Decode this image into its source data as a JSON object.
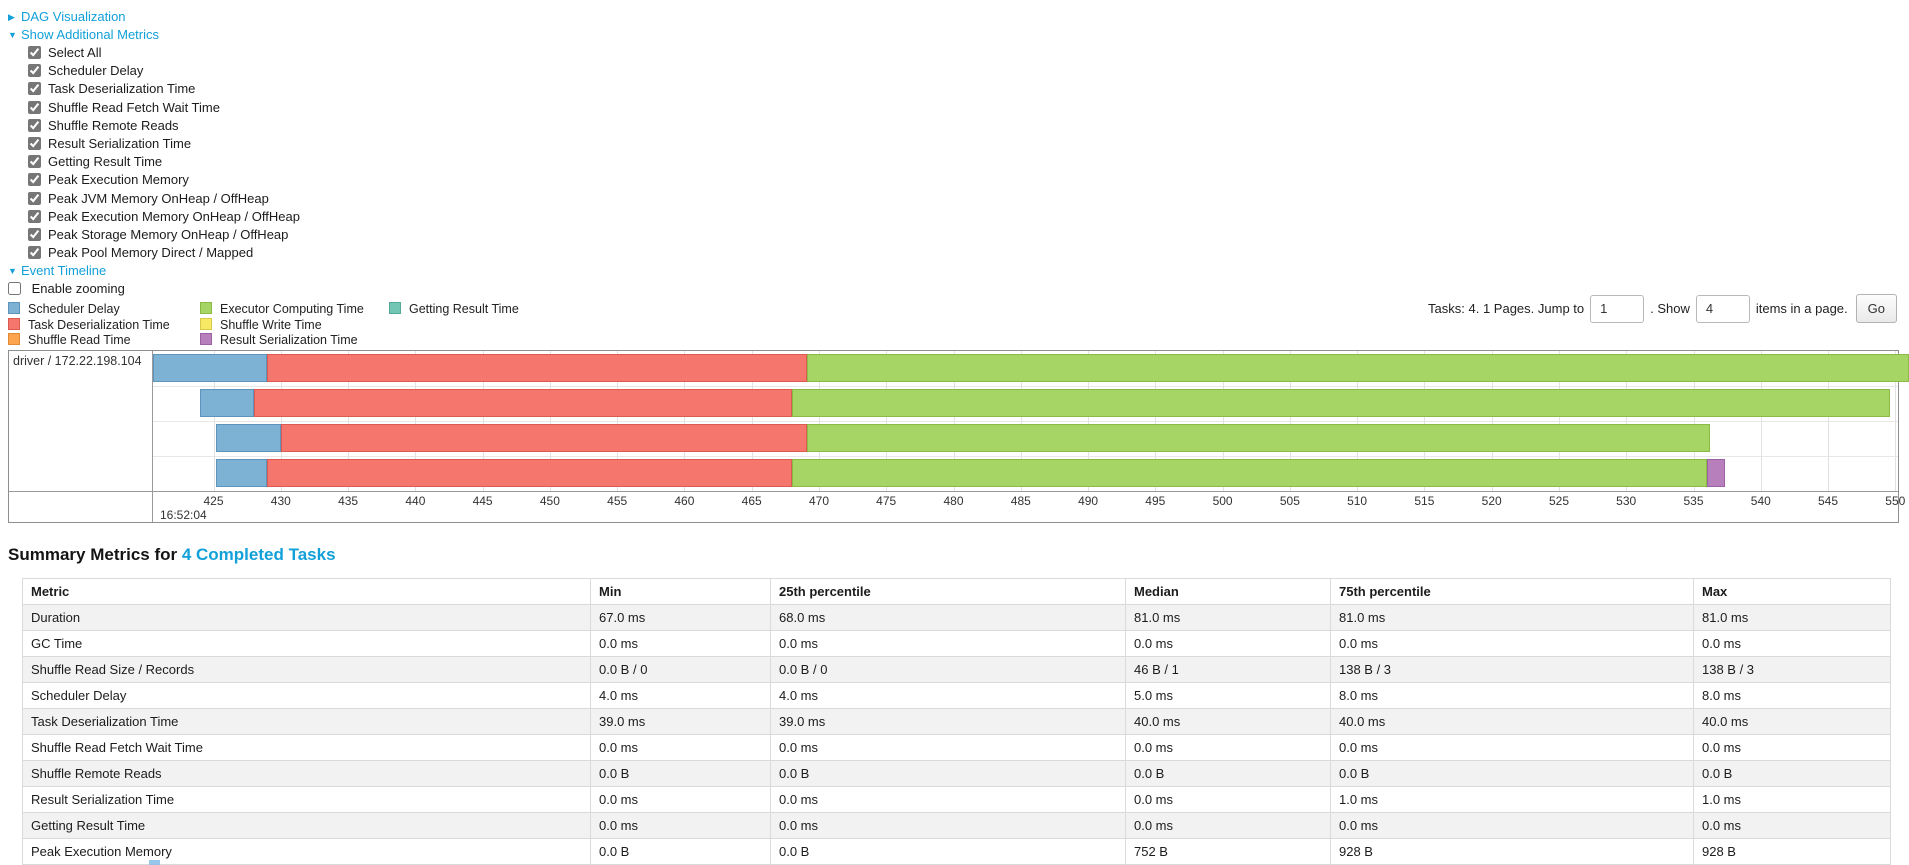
{
  "colors": {
    "link": "#12a0d9",
    "palette": {
      "scheduler_delay": {
        "fill": "#7EB2D5",
        "border": "#5D94BC"
      },
      "task_deserialization": {
        "fill": "#F4766D",
        "border": "#DB5B52"
      },
      "shuffle_read": {
        "fill": "#FBA44D",
        "border": "#E08A34"
      },
      "executor_computing": {
        "fill": "#A6D465",
        "border": "#8CBA45"
      },
      "shuffle_write": {
        "fill": "#F8E964",
        "border": "#D9C94A"
      },
      "result_serialization": {
        "fill": "#B77FBC",
        "border": "#9C61A3"
      },
      "getting_result": {
        "fill": "#73C6B4",
        "border": "#54A896"
      }
    }
  },
  "toggles": {
    "dag": {
      "arrow": "▶",
      "label": "DAG Visualization"
    },
    "metrics": {
      "arrow": "▼",
      "label": "Show Additional Metrics"
    },
    "timeline": {
      "arrow": "▼",
      "label": "Event Timeline"
    }
  },
  "metric_checkboxes": [
    {
      "label": "Select All",
      "checked": true
    },
    {
      "label": "Scheduler Delay",
      "checked": true
    },
    {
      "label": "Task Deserialization Time",
      "checked": true
    },
    {
      "label": "Shuffle Read Fetch Wait Time",
      "checked": true
    },
    {
      "label": "Shuffle Remote Reads",
      "checked": true
    },
    {
      "label": "Result Serialization Time",
      "checked": true
    },
    {
      "label": "Getting Result Time",
      "checked": true
    },
    {
      "label": "Peak Execution Memory",
      "checked": true
    },
    {
      "label": "Peak JVM Memory OnHeap / OffHeap",
      "checked": true
    },
    {
      "label": "Peak Execution Memory OnHeap / OffHeap",
      "checked": true
    },
    {
      "label": "Peak Storage Memory OnHeap / OffHeap",
      "checked": true
    },
    {
      "label": "Peak Pool Memory Direct / Mapped",
      "checked": true
    }
  ],
  "enable_zooming": {
    "label": "Enable zooming",
    "checked": false
  },
  "legend": {
    "columns": [
      [
        {
          "key": "scheduler_delay",
          "label": "Scheduler Delay"
        },
        {
          "key": "task_deserialization",
          "label": "Task Deserialization Time"
        },
        {
          "key": "shuffle_read",
          "label": "Shuffle Read Time"
        }
      ],
      [
        {
          "key": "executor_computing",
          "label": "Executor Computing Time"
        },
        {
          "key": "shuffle_write",
          "label": "Shuffle Write Time"
        },
        {
          "key": "result_serialization",
          "label": "Result Serialization Time"
        }
      ],
      [
        {
          "key": "getting_result",
          "label": "Getting Result Time"
        }
      ]
    ]
  },
  "pagination": {
    "tasks_text": "Tasks: 4. 1 Pages. Jump to",
    "jump_value": "1",
    "show_text": ". Show",
    "show_value": "4",
    "items_text": "items in a page.",
    "go_label": "Go"
  },
  "chart_data": {
    "type": "timeline",
    "row_label": "driver / 172.22.198.104",
    "time_label": "16:52:04",
    "x_min": 420.5,
    "x_max": 550.2,
    "tick_step": 5,
    "ticks": [
      425,
      430,
      435,
      440,
      445,
      450,
      455,
      460,
      465,
      470,
      475,
      480,
      485,
      490,
      495,
      500,
      505,
      510,
      515,
      520,
      525,
      530,
      535,
      540,
      545,
      550
    ],
    "tasks": [
      {
        "segments": [
          {
            "type": "scheduler_delay",
            "start": 420.5,
            "end": 429.0
          },
          {
            "type": "task_deserialization",
            "start": 429.0,
            "end": 469.1
          },
          {
            "type": "executor_computing",
            "start": 469.1,
            "end": 551.0
          }
        ]
      },
      {
        "segments": [
          {
            "type": "scheduler_delay",
            "start": 424.0,
            "end": 428.0
          },
          {
            "type": "task_deserialization",
            "start": 428.0,
            "end": 468.0
          },
          {
            "type": "executor_computing",
            "start": 468.0,
            "end": 549.6
          }
        ]
      },
      {
        "segments": [
          {
            "type": "scheduler_delay",
            "start": 425.2,
            "end": 430.0
          },
          {
            "type": "task_deserialization",
            "start": 430.0,
            "end": 469.1
          },
          {
            "type": "executor_computing",
            "start": 469.1,
            "end": 536.2
          }
        ]
      },
      {
        "segments": [
          {
            "type": "scheduler_delay",
            "start": 425.2,
            "end": 429.0
          },
          {
            "type": "task_deserialization",
            "start": 429.0,
            "end": 468.0
          },
          {
            "type": "executor_computing",
            "start": 468.0,
            "end": 536.0
          },
          {
            "type": "result_serialization",
            "start": 536.0,
            "end": 537.3
          }
        ]
      }
    ]
  },
  "summary": {
    "title_prefix": "Summary Metrics for ",
    "title_link": "4 Completed Tasks",
    "table": {
      "headers": [
        "Metric",
        "Min",
        "25th percentile",
        "Median",
        "75th percentile",
        "Max"
      ],
      "rows": [
        [
          "Duration",
          "67.0 ms",
          "68.0 ms",
          "81.0 ms",
          "81.0 ms",
          "81.0 ms"
        ],
        [
          "GC Time",
          "0.0 ms",
          "0.0 ms",
          "0.0 ms",
          "0.0 ms",
          "0.0 ms"
        ],
        [
          "Shuffle Read Size / Records",
          "0.0 B / 0",
          "0.0 B / 0",
          "46 B / 1",
          "138 B / 3",
          "138 B / 3"
        ],
        [
          "Scheduler Delay",
          "4.0 ms",
          "4.0 ms",
          "5.0 ms",
          "8.0 ms",
          "8.0 ms"
        ],
        [
          "Task Deserialization Time",
          "39.0 ms",
          "39.0 ms",
          "40.0 ms",
          "40.0 ms",
          "40.0 ms"
        ],
        [
          "Shuffle Read Fetch Wait Time",
          "0.0 ms",
          "0.0 ms",
          "0.0 ms",
          "0.0 ms",
          "0.0 ms"
        ],
        [
          "Shuffle Remote Reads",
          "0.0 B",
          "0.0 B",
          "0.0 B",
          "0.0 B",
          "0.0 B"
        ],
        [
          "Result Serialization Time",
          "0.0 ms",
          "0.0 ms",
          "0.0 ms",
          "1.0 ms",
          "1.0 ms"
        ],
        [
          "Getting Result Time",
          "0.0 ms",
          "0.0 ms",
          "0.0 ms",
          "0.0 ms",
          "0.0 ms"
        ],
        [
          "Peak Execution Memory",
          "0.0 B",
          "0.0 B",
          "752 B",
          "928 B",
          "928 B"
        ]
      ]
    }
  }
}
